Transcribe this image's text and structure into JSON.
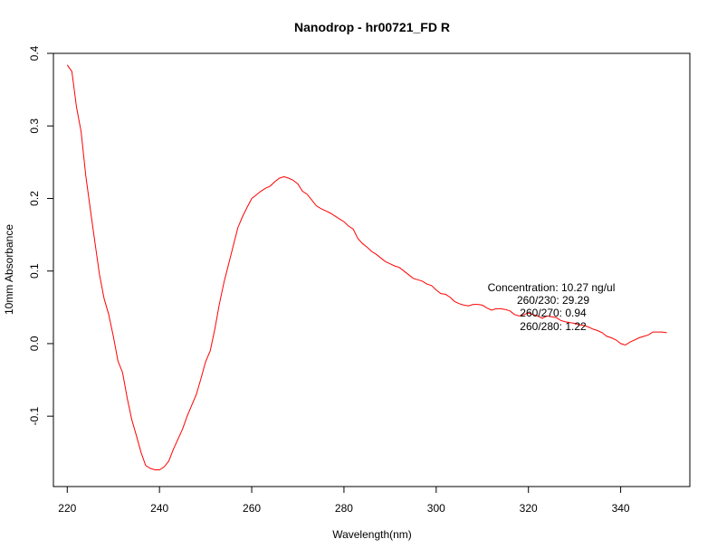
{
  "chart_data": {
    "type": "line",
    "title": "Nanodrop - hr00721_FD R",
    "xlabel": "Wavelength(nm)",
    "ylabel": "10mm Absorbance",
    "xlim": [
      217,
      355
    ],
    "ylim": [
      -0.197,
      0.4
    ],
    "x_ticks": [
      220,
      240,
      260,
      280,
      300,
      320,
      340
    ],
    "x_tick_labels": [
      "220",
      "240",
      "260",
      "280",
      "300",
      "320",
      "340"
    ],
    "y_ticks": [
      -0.1,
      0.0,
      0.1,
      0.2,
      0.3,
      0.4
    ],
    "y_tick_labels": [
      "-0.1",
      "0.0",
      "0.1",
      "0.2",
      "0.3",
      "0.4"
    ],
    "grid": false,
    "series": [
      {
        "color": "#ff0000",
        "x": [
          220,
          221,
          222,
          223,
          224,
          225,
          226,
          227,
          228,
          229,
          230,
          231,
          232,
          233,
          234,
          235,
          236,
          237,
          238,
          239,
          240,
          241,
          242,
          243,
          244,
          245,
          246,
          247,
          248,
          249,
          250,
          251,
          252,
          253,
          254,
          255,
          256,
          257,
          258,
          259,
          260,
          261,
          262,
          263,
          264,
          265,
          266,
          267,
          268,
          269,
          270,
          271,
          272,
          273,
          274,
          275,
          276,
          277,
          278,
          279,
          280,
          281,
          282,
          283,
          284,
          285,
          286,
          287,
          288,
          289,
          290,
          291,
          292,
          293,
          294,
          295,
          296,
          297,
          298,
          299,
          300,
          301,
          302,
          303,
          304,
          305,
          306,
          307,
          308,
          309,
          310,
          311,
          312,
          313,
          314,
          315,
          316,
          317,
          318,
          319,
          320,
          321,
          322,
          323,
          324,
          325,
          326,
          327,
          328,
          329,
          330,
          331,
          332,
          333,
          334,
          335,
          336,
          337,
          338,
          339,
          340,
          341,
          342,
          343,
          344,
          345,
          346,
          347,
          348,
          349,
          350
        ],
        "y": [
          0.384,
          0.375,
          0.326,
          0.292,
          0.232,
          0.185,
          0.14,
          0.095,
          0.062,
          0.04,
          0.01,
          -0.024,
          -0.04,
          -0.075,
          -0.105,
          -0.127,
          -0.15,
          -0.168,
          -0.172,
          -0.174,
          -0.174,
          -0.17,
          -0.162,
          -0.146,
          -0.132,
          -0.118,
          -0.1,
          -0.085,
          -0.07,
          -0.048,
          -0.025,
          -0.01,
          0.02,
          0.055,
          0.085,
          0.11,
          0.135,
          0.16,
          0.175,
          0.188,
          0.2,
          0.205,
          0.21,
          0.214,
          0.217,
          0.223,
          0.228,
          0.23,
          0.228,
          0.225,
          0.22,
          0.21,
          0.206,
          0.198,
          0.19,
          0.186,
          0.183,
          0.18,
          0.176,
          0.172,
          0.168,
          0.162,
          0.158,
          0.145,
          0.138,
          0.133,
          0.127,
          0.123,
          0.118,
          0.113,
          0.11,
          0.107,
          0.105,
          0.1,
          0.095,
          0.09,
          0.088,
          0.086,
          0.082,
          0.08,
          0.074,
          0.069,
          0.068,
          0.064,
          0.058,
          0.055,
          0.053,
          0.052,
          0.054,
          0.054,
          0.053,
          0.049,
          0.046,
          0.048,
          0.048,
          0.047,
          0.045,
          0.04,
          0.038,
          0.04,
          0.042,
          0.04,
          0.038,
          0.035,
          0.038,
          0.037,
          0.036,
          0.032,
          0.03,
          0.029,
          0.028,
          0.026,
          0.025,
          0.023,
          0.02,
          0.018,
          0.015,
          0.01,
          0.008,
          0.005,
          0.0,
          -0.002,
          0.002,
          0.005,
          0.008,
          0.01,
          0.012,
          0.016,
          0.016,
          0.016,
          0.015
        ]
      }
    ],
    "annotations": [
      "Concentration: 10.27 ng/ul",
      "260/230: 29.29",
      "260/270: 0.94",
      "260/280: 1.22"
    ]
  }
}
